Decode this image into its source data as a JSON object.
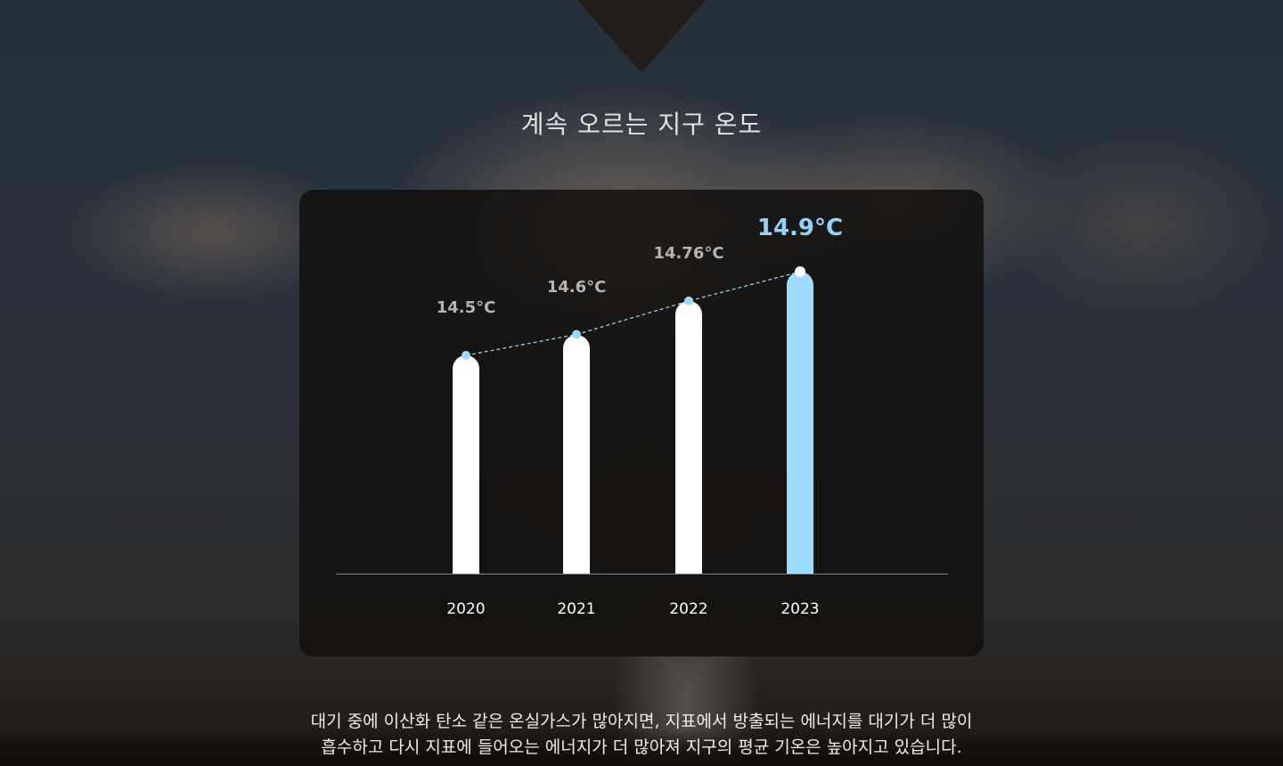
{
  "page": {
    "title": "계속 오르는 지구 온도",
    "caption_line1": "대기 중에 이산화 탄소 같은 온실가스가 많아지면, 지표에서 방출되는 에너지를 대기가 더 많이",
    "caption_line2": "흡수하고 다시 지표에 들어오는 에너지가 더 많아져 지구의 평균 기온은 높아지고 있습니다."
  },
  "colors": {
    "bar": "#ffffff",
    "highlight": "#9ddcff",
    "trend_line": "#9ddcff",
    "label": "#b4b4b4"
  },
  "chart_data": {
    "type": "bar",
    "categories": [
      "2020",
      "2021",
      "2022",
      "2023"
    ],
    "values": [
      14.5,
      14.6,
      14.76,
      14.9
    ],
    "value_labels": [
      "14.5°C",
      "14.6°C",
      "14.76°C",
      "14.9°C"
    ],
    "highlight_index": 3,
    "trend_line": "dashed",
    "unit": "°C"
  }
}
